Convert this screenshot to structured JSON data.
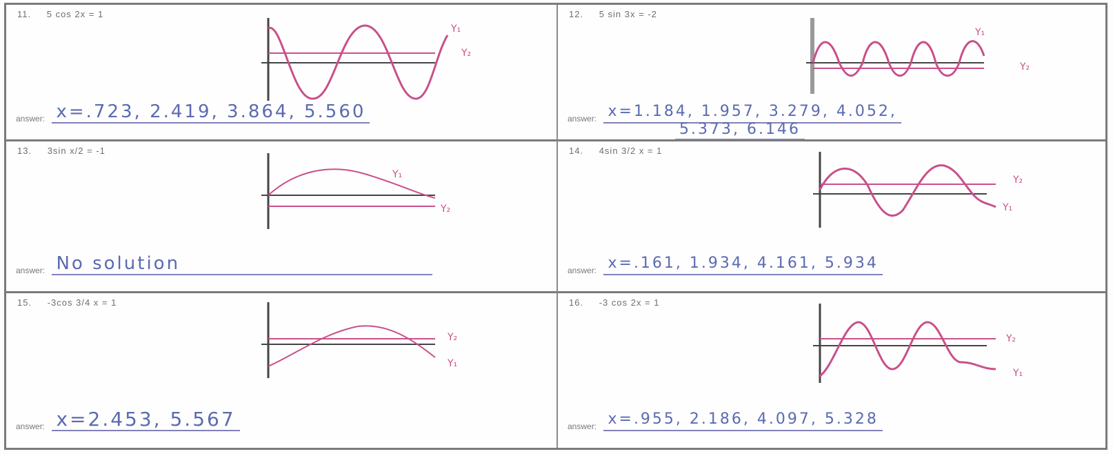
{
  "problems": [
    {
      "number": "11.",
      "equation": "5 cos 2x = 1",
      "answer_label": "answer:",
      "answer": "x=.723, 2.419, 3.864, 5.560",
      "curve_label": "Y₁",
      "line_label": "Y₂"
    },
    {
      "number": "12.",
      "equation": "5 sin 3x = -2",
      "answer_label": "answer:",
      "answer": "x=1.184, 1.957, 3.279, 4.052,",
      "answer_line2": "5.373, 6.146",
      "curve_label": "Y₁",
      "line_label": "Y₂"
    },
    {
      "number": "13.",
      "equation": "3sin x/2 = -1",
      "answer_label": "answer:",
      "answer": "No solution",
      "curve_label": "Y₁",
      "line_label": "Y₂"
    },
    {
      "number": "14.",
      "equation": "4sin 3/2 x = 1",
      "answer_label": "answer:",
      "answer": "x=.161, 1.934, 4.161, 5.934",
      "curve_label": "Y₁",
      "line_label": "Y₂"
    },
    {
      "number": "15.",
      "equation": "-3cos 3/4 x = 1",
      "answer_label": "answer:",
      "answer": "x=2.453, 5.567",
      "curve_label": "Y₁",
      "line_label": "Y₂"
    },
    {
      "number": "16.",
      "equation": "-3 cos 2x = 1",
      "answer_label": "answer:",
      "answer": "x=.955, 2.186, 4.097, 5.328",
      "curve_label": "Y₁",
      "line_label": "Y₂"
    }
  ]
}
